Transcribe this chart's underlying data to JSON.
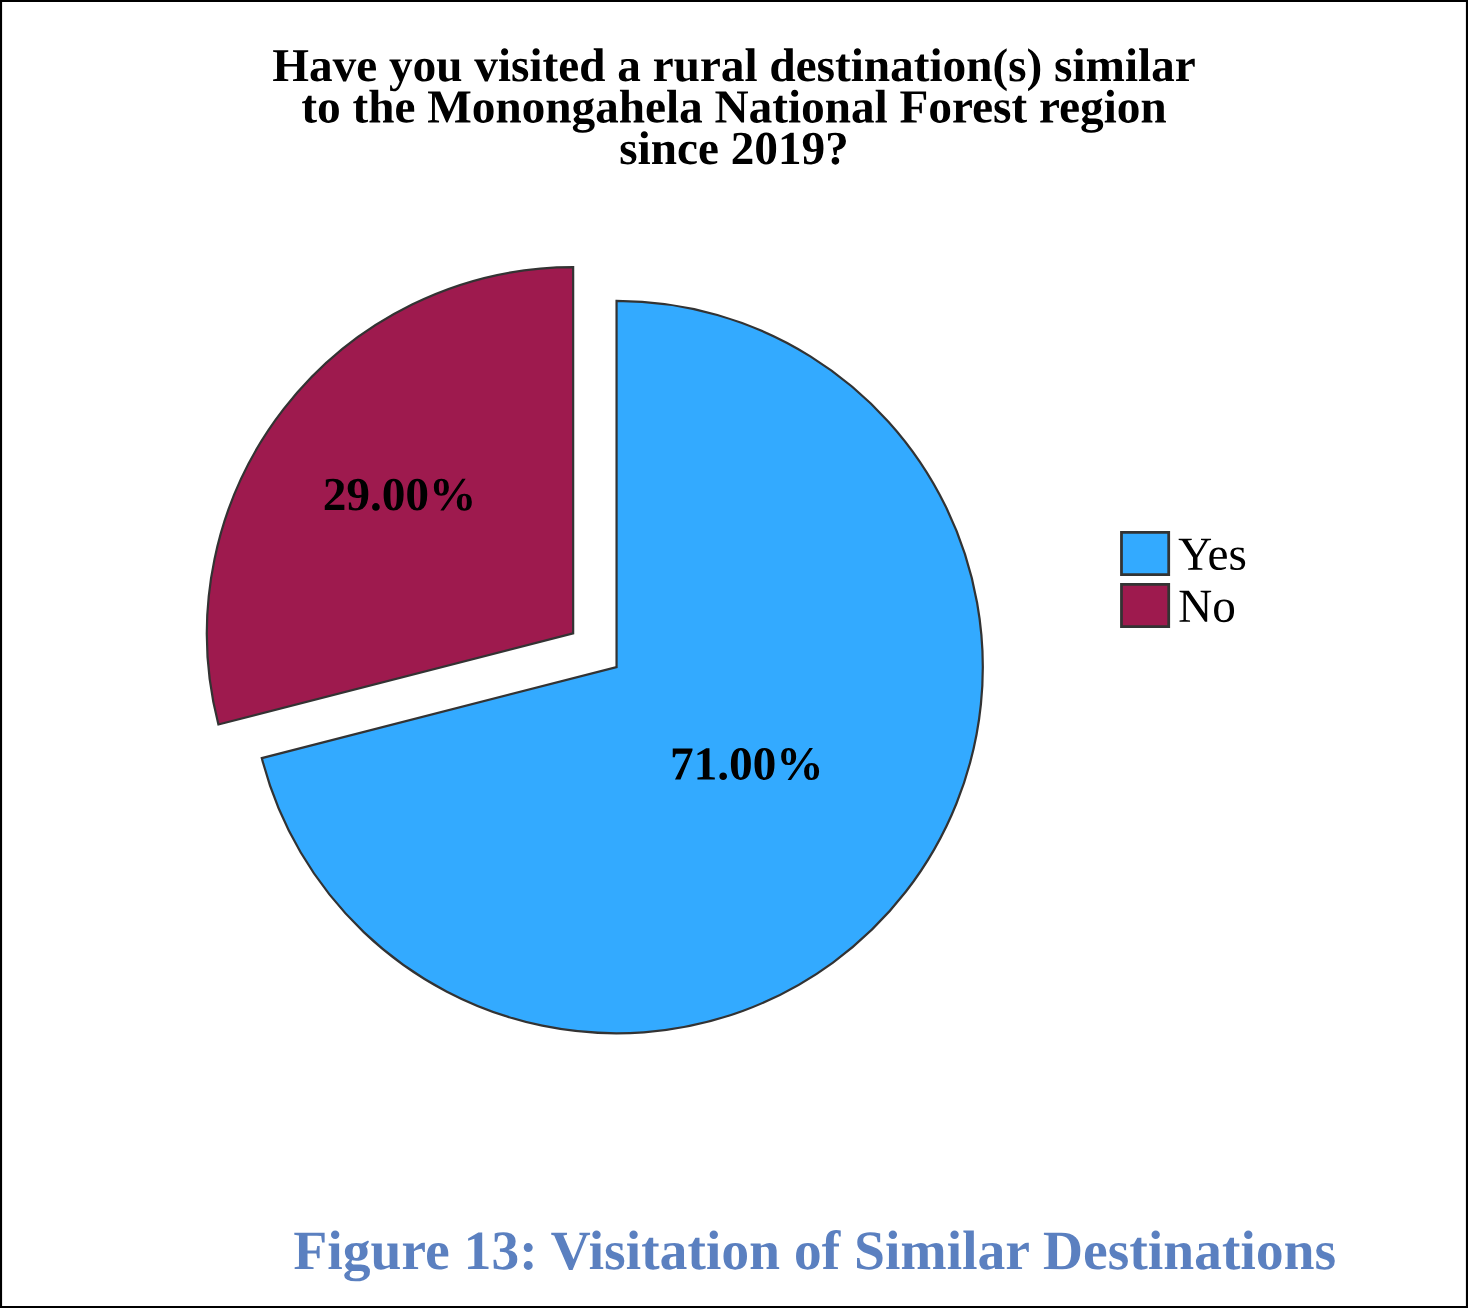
{
  "chart_data": {
    "type": "pie",
    "title": "Have you visited a rural destination(s) similar\nto the Monongahela National Forest region\nsince 2019?",
    "categories": [
      "Yes",
      "No"
    ],
    "values": [
      71,
      29
    ],
    "colors": [
      "#33aaff",
      "#9e1a4e"
    ],
    "value_labels": [
      "71.00%",
      "29.00%"
    ],
    "legend": "right",
    "annotations": [
      "Figure 13: Visitation of Similar Destinations"
    ]
  }
}
